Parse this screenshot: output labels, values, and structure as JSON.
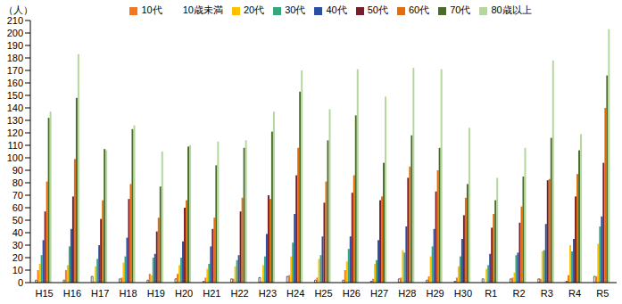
{
  "chart_data": {
    "type": "bar",
    "ylabel": "（人）",
    "categories": [
      "H15",
      "H16",
      "H17",
      "H18",
      "H19",
      "H20",
      "H21",
      "H22",
      "H23",
      "H24",
      "H25",
      "H26",
      "H27",
      "H28",
      "H29",
      "H30",
      "R1",
      "R2",
      "R3",
      "R4",
      "R5"
    ],
    "series": [
      {
        "name": "10歳未満",
        "color": "#ffffff",
        "values": [
          2,
          2,
          5,
          3,
          2,
          3,
          1,
          3,
          4,
          5,
          2,
          2,
          1,
          3,
          2,
          1,
          3,
          3,
          3,
          1,
          5
        ]
      },
      {
        "name": "10代",
        "color": "#f07820",
        "values": [
          10,
          10,
          1,
          4,
          7,
          7,
          4,
          3,
          1,
          6,
          4,
          10,
          3,
          4,
          5,
          4,
          0,
          4,
          3,
          6,
          5
        ]
      },
      {
        "name": "20代",
        "color": "#ffc000",
        "values": [
          15,
          14,
          13,
          16,
          6,
          14,
          11,
          13,
          14,
          21,
          19,
          17,
          15,
          26,
          21,
          13,
          11,
          8,
          25,
          30,
          31
        ]
      },
      {
        "name": "30代",
        "color": "#3aa57a",
        "values": [
          22,
          29,
          19,
          21,
          20,
          20,
          15,
          18,
          21,
          32,
          22,
          27,
          18,
          24,
          29,
          21,
          14,
          22,
          26,
          25,
          45
        ]
      },
      {
        "name": "40代",
        "color": "#2a4fa0",
        "values": [
          34,
          43,
          30,
          36,
          23,
          33,
          29,
          22,
          39,
          55,
          37,
          37,
          34,
          45,
          43,
          35,
          23,
          24,
          47,
          35,
          53
        ]
      },
      {
        "name": "50代",
        "color": "#7b1c2a",
        "values": [
          57,
          69,
          51,
          67,
          41,
          60,
          43,
          57,
          70,
          86,
          64,
          72,
          66,
          84,
          73,
          54,
          44,
          48,
          82,
          69,
          96
        ]
      },
      {
        "name": "60代",
        "color": "#e46c0a",
        "values": [
          81,
          99,
          66,
          79,
          52,
          66,
          52,
          68,
          67,
          108,
          81,
          86,
          69,
          93,
          90,
          68,
          55,
          61,
          83,
          87,
          140
        ]
      },
      {
        "name": "70代",
        "color": "#4a6b2a",
        "values": [
          132,
          148,
          107,
          123,
          77,
          109,
          94,
          108,
          121,
          153,
          114,
          134,
          96,
          118,
          108,
          79,
          66,
          85,
          116,
          106,
          166
        ]
      },
      {
        "name": "80歳以上",
        "color": "#b4d89c",
        "values": [
          137,
          183,
          106,
          126,
          105,
          110,
          113,
          114,
          137,
          170,
          139,
          171,
          149,
          172,
          171,
          124,
          84,
          108,
          178,
          119,
          203
        ]
      }
    ],
    "ylim": [
      0,
      210
    ],
    "yticks": [
      0,
      10,
      20,
      30,
      40,
      50,
      60,
      70,
      80,
      90,
      100,
      110,
      120,
      130,
      140,
      150,
      160,
      170,
      180,
      190,
      200,
      210
    ],
    "grid": false,
    "legend": "top"
  }
}
